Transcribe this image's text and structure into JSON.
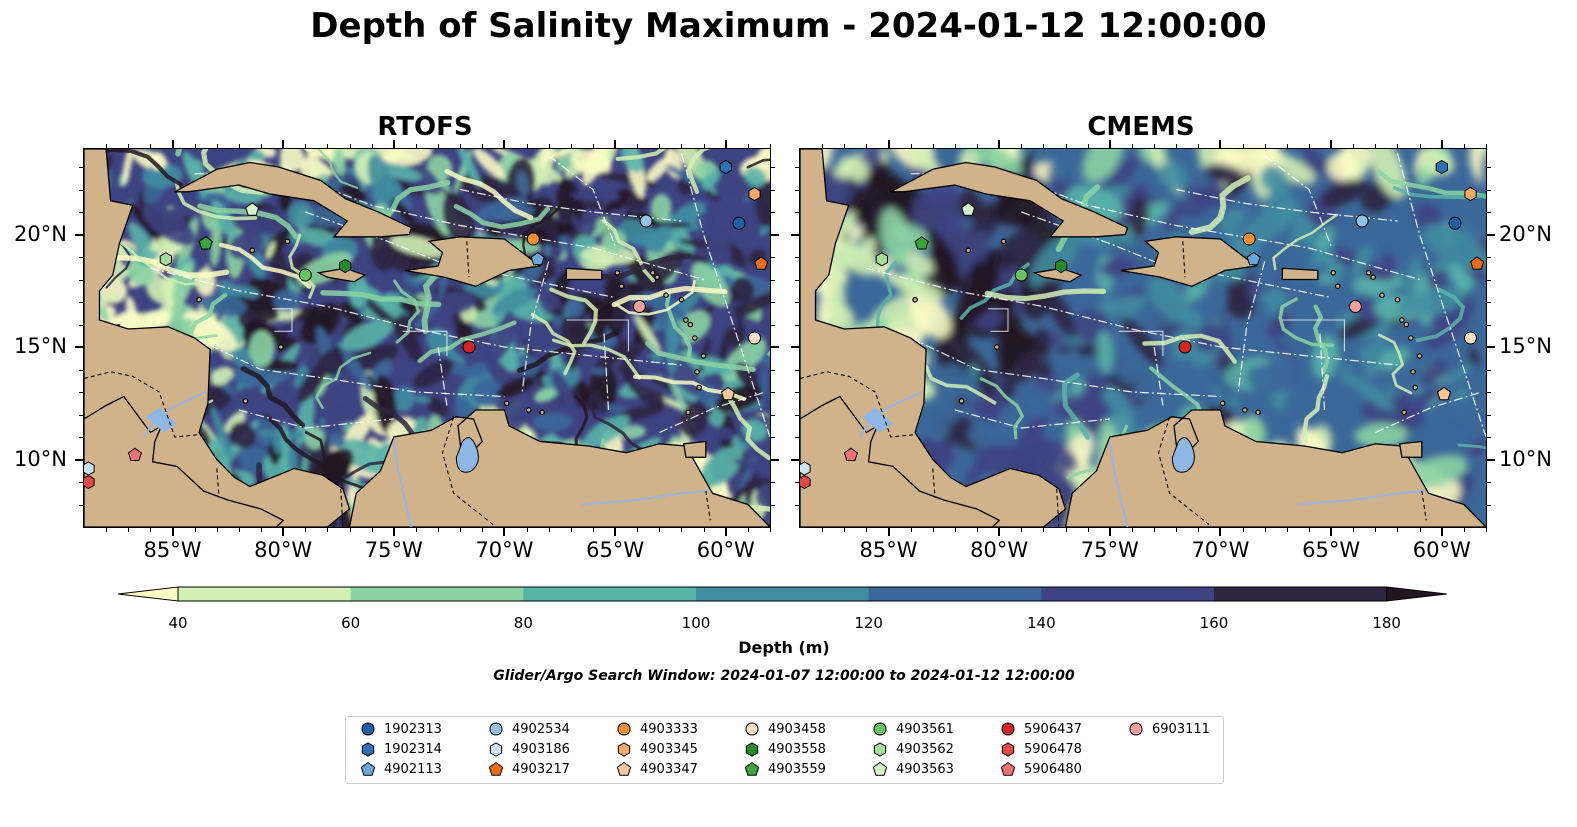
{
  "title": "Depth of Salinity Maximum - 2024-01-12 12:00:00",
  "panels": [
    {
      "title": "RTOFS"
    },
    {
      "title": "CMEMS"
    }
  ],
  "axes": {
    "lon_ticks": [
      "85°W",
      "80°W",
      "75°W",
      "70°W",
      "65°W",
      "60°W"
    ],
    "lat_ticks": [
      "20°N",
      "15°N",
      "10°N"
    ],
    "lon_range": [
      -89.0,
      -58.0
    ],
    "lat_range": [
      7.0,
      23.8
    ]
  },
  "colorbar": {
    "title": "Depth (m)",
    "ticks": [
      "40",
      "60",
      "80",
      "100",
      "120",
      "140",
      "160",
      "180"
    ],
    "colors": [
      "#fbfbc4",
      "#d2f0b4",
      "#8bd3a3",
      "#59b4a8",
      "#408da1",
      "#3c6899",
      "#3e4381",
      "#2e2641",
      "#231623"
    ],
    "extend": "both"
  },
  "subtitle": "Glider/Argo Search Window: 2024-01-07 12:00:00 to 2024-01-12 12:00:00",
  "colors": {
    "land": "#d0b38b",
    "river": "#97b6e1",
    "lake": "#8fb7e6"
  },
  "legend": [
    {
      "id": "1902313",
      "color": "#1f5ea8",
      "marker": "circle"
    },
    {
      "id": "1902314",
      "color": "#2b74b8",
      "marker": "hexagon"
    },
    {
      "id": "4902113",
      "color": "#6aa7d8",
      "marker": "pentagon"
    },
    {
      "id": "4902534",
      "color": "#91c3e9",
      "marker": "circle"
    },
    {
      "id": "4903186",
      "color": "#cde3f5",
      "marker": "hexagon"
    },
    {
      "id": "4903217",
      "color": "#ee6f0a",
      "marker": "pentagon"
    },
    {
      "id": "4903333",
      "color": "#f58d33",
      "marker": "circle"
    },
    {
      "id": "4903345",
      "color": "#f9a968",
      "marker": "hexagon"
    },
    {
      "id": "4903347",
      "color": "#fbc59a",
      "marker": "pentagon"
    },
    {
      "id": "4903458",
      "color": "#fde0c6",
      "marker": "circle"
    },
    {
      "id": "4903558",
      "color": "#238b2c",
      "marker": "hexagon"
    },
    {
      "id": "4903559",
      "color": "#3ba53a",
      "marker": "pentagon"
    },
    {
      "id": "4903561",
      "color": "#69c263",
      "marker": "circle"
    },
    {
      "id": "4903562",
      "color": "#a5dd9a",
      "marker": "hexagon"
    },
    {
      "id": "4903563",
      "color": "#d7f3cc",
      "marker": "pentagon"
    },
    {
      "id": "5906437",
      "color": "#d62424",
      "marker": "circle"
    },
    {
      "id": "5906478",
      "color": "#e34a48",
      "marker": "hexagon"
    },
    {
      "id": "5906480",
      "color": "#ef7372",
      "marker": "pentagon"
    },
    {
      "id": "6903111",
      "color": "#f4a09c",
      "marker": "circle"
    }
  ],
  "floats": [
    {
      "id": "4902113",
      "lon": -68.5,
      "lat": 18.9
    },
    {
      "id": "4902534",
      "lon": -63.6,
      "lat": 20.6
    },
    {
      "id": "1902314",
      "lon": -60.0,
      "lat": 23.0
    },
    {
      "id": "1902313",
      "lon": -59.4,
      "lat": 20.5
    },
    {
      "id": "4903345",
      "lon": -58.7,
      "lat": 21.8
    },
    {
      "id": "4903333",
      "lon": -68.7,
      "lat": 19.8
    },
    {
      "id": "4903217",
      "lon": -58.4,
      "lat": 18.7
    },
    {
      "id": "6903111",
      "lon": -63.9,
      "lat": 16.8
    },
    {
      "id": "4903458",
      "lon": -58.7,
      "lat": 15.4
    },
    {
      "id": "4903347",
      "lon": -59.9,
      "lat": 12.9
    },
    {
      "id": "5906437",
      "lon": -71.6,
      "lat": 15.0
    },
    {
      "id": "4903563",
      "lon": -81.4,
      "lat": 21.1
    },
    {
      "id": "4903559",
      "lon": -83.5,
      "lat": 19.6
    },
    {
      "id": "4903562",
      "lon": -85.3,
      "lat": 18.9
    },
    {
      "id": "4903561",
      "lon": -79.0,
      "lat": 18.2
    },
    {
      "id": "4903558",
      "lon": -77.2,
      "lat": 18.6
    },
    {
      "id": "5906480",
      "lon": -86.7,
      "lat": 10.2
    },
    {
      "id": "4903186",
      "lon": -88.8,
      "lat": 9.6
    },
    {
      "id": "5906478",
      "lon": -88.8,
      "lat": 9.0
    }
  ]
}
